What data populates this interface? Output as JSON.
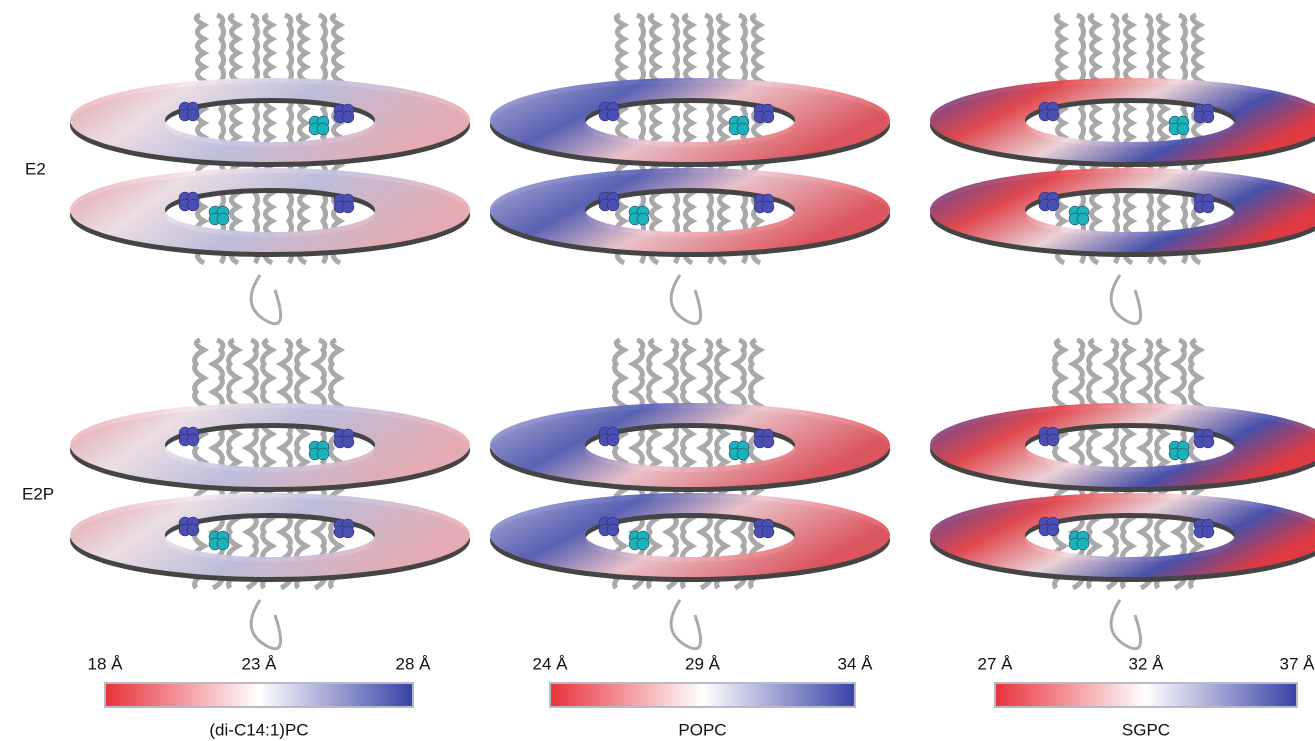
{
  "rows": [
    "E2",
    "E2P"
  ],
  "colorbars": [
    {
      "label": "(di-C14:1)PC",
      "ticks": [
        "18 Å",
        "23 Å",
        "28 Å"
      ]
    },
    {
      "label": "POPC",
      "ticks": [
        "24 Å",
        "29 Å",
        "34 Å"
      ]
    },
    {
      "label": "SGPC",
      "ticks": [
        "27 Å",
        "32 Å",
        "37 Å"
      ]
    }
  ]
}
